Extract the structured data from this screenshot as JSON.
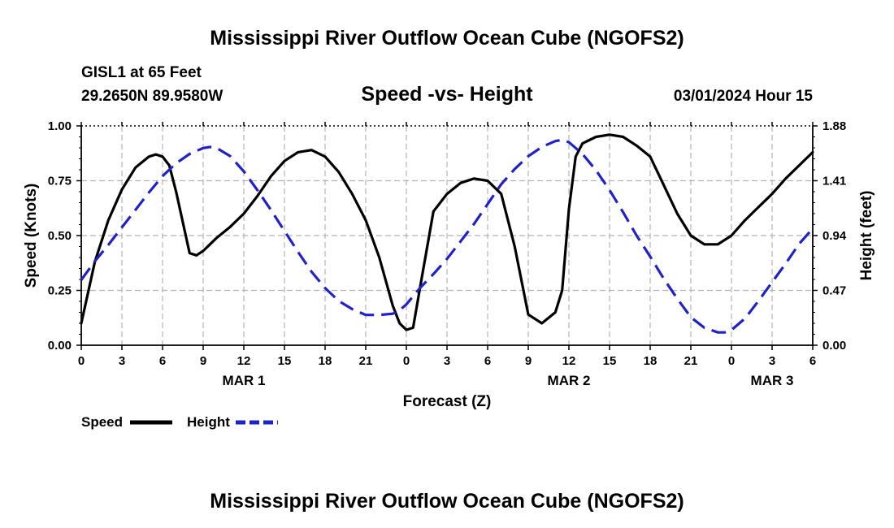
{
  "header": {
    "title": "Mississippi River Outflow Ocean Cube (NGOFS2)",
    "station": "GISL1 at 65 Feet",
    "coordinates": "29.2650N  89.9580W",
    "subtitle": "Speed -vs- Height",
    "datetime": "03/01/2024 Hour 15",
    "footer_title": "Mississippi River Outflow Ocean Cube (NGOFS2)"
  },
  "chart_data": {
    "type": "line",
    "title": "Speed -vs- Height",
    "xlabel": "Forecast (Z)",
    "ylabel": "Speed (Knots)",
    "y2label": "Height (feet)",
    "x_unit": "hours since 03/01/2024 00Z",
    "xlim": [
      0,
      54
    ],
    "ylim": [
      0,
      1.0
    ],
    "y2lim": [
      0,
      1.88
    ],
    "x_ticks": [
      0,
      3,
      6,
      9,
      12,
      15,
      18,
      21,
      24,
      27,
      30,
      33,
      36,
      39,
      42,
      45,
      48,
      51,
      54
    ],
    "x_tick_labels": [
      "0",
      "3",
      "6",
      "9",
      "12",
      "15",
      "18",
      "21",
      "0",
      "3",
      "6",
      "9",
      "12",
      "15",
      "18",
      "21",
      "0",
      "3",
      "6"
    ],
    "y_ticks": [
      0,
      0.25,
      0.5,
      0.75,
      1.0
    ],
    "y_tick_labels": [
      "0.00",
      "0.25",
      "0.50",
      "0.75",
      "1.00"
    ],
    "y2_ticks": [
      0,
      0.47,
      0.94,
      1.41,
      1.88
    ],
    "y2_tick_labels": [
      "0.00",
      "0.47",
      "0.94",
      "1.41",
      "1.88"
    ],
    "date_labels": [
      {
        "x": 12,
        "label": "MAR 1"
      },
      {
        "x": 36,
        "label": "MAR 2"
      },
      {
        "x": 51,
        "label": "MAR 3"
      }
    ],
    "grid": true,
    "legend_position": "bottom-left",
    "series": [
      {
        "name": "Speed",
        "axis": "left",
        "color": "#000000",
        "style": "solid",
        "x": [
          0,
          1,
          2,
          3,
          4,
          5,
          5.5,
          6,
          6.5,
          7,
          8,
          8.5,
          9,
          10,
          11,
          12,
          13,
          14,
          15,
          16,
          17,
          18,
          19,
          20,
          21,
          22,
          23,
          23.5,
          24,
          24.5,
          25,
          26,
          27,
          28,
          29,
          30,
          31,
          32,
          33,
          34,
          35,
          35.5,
          36,
          36.5,
          37,
          38,
          39,
          40,
          41,
          42,
          43,
          44,
          45,
          46,
          47,
          48,
          49,
          50,
          51,
          52,
          53,
          54
        ],
        "values": [
          0.1,
          0.38,
          0.57,
          0.71,
          0.81,
          0.86,
          0.87,
          0.86,
          0.82,
          0.7,
          0.42,
          0.41,
          0.43,
          0.49,
          0.54,
          0.6,
          0.68,
          0.77,
          0.84,
          0.88,
          0.89,
          0.86,
          0.79,
          0.69,
          0.57,
          0.4,
          0.18,
          0.1,
          0.07,
          0.08,
          0.26,
          0.61,
          0.69,
          0.74,
          0.76,
          0.75,
          0.69,
          0.45,
          0.14,
          0.1,
          0.15,
          0.25,
          0.62,
          0.86,
          0.92,
          0.95,
          0.96,
          0.95,
          0.91,
          0.86,
          0.73,
          0.6,
          0.5,
          0.46,
          0.46,
          0.5,
          0.57,
          0.63,
          0.69,
          0.76,
          0.82,
          0.88
        ]
      },
      {
        "name": "Height",
        "axis": "right",
        "color": "#1f22c7",
        "style": "dashed",
        "x": [
          0,
          1,
          2,
          3,
          4,
          5,
          6,
          7,
          8,
          9,
          9.5,
          10,
          11,
          12,
          13,
          14,
          15,
          16,
          17,
          18,
          19,
          20,
          21,
          22,
          23,
          23.5,
          24,
          25,
          26,
          27,
          28,
          29,
          30,
          31,
          32,
          33,
          34,
          35,
          35.5,
          36,
          37,
          38,
          39,
          40,
          41,
          42,
          43,
          44,
          45,
          46,
          47,
          47.5,
          48,
          49,
          50,
          51,
          52,
          53,
          54
        ],
        "values": [
          0.56,
          0.72,
          0.86,
          1.01,
          1.16,
          1.31,
          1.45,
          1.56,
          1.64,
          1.69,
          1.7,
          1.69,
          1.62,
          1.49,
          1.33,
          1.16,
          0.98,
          0.8,
          0.63,
          0.49,
          0.38,
          0.31,
          0.26,
          0.26,
          0.27,
          0.3,
          0.35,
          0.49,
          0.61,
          0.74,
          0.89,
          1.04,
          1.21,
          1.38,
          1.51,
          1.62,
          1.7,
          1.75,
          1.76,
          1.74,
          1.64,
          1.5,
          1.33,
          1.14,
          0.94,
          0.76,
          0.57,
          0.4,
          0.24,
          0.15,
          0.11,
          0.11,
          0.13,
          0.23,
          0.38,
          0.54,
          0.7,
          0.87,
          1.0
        ]
      }
    ]
  }
}
